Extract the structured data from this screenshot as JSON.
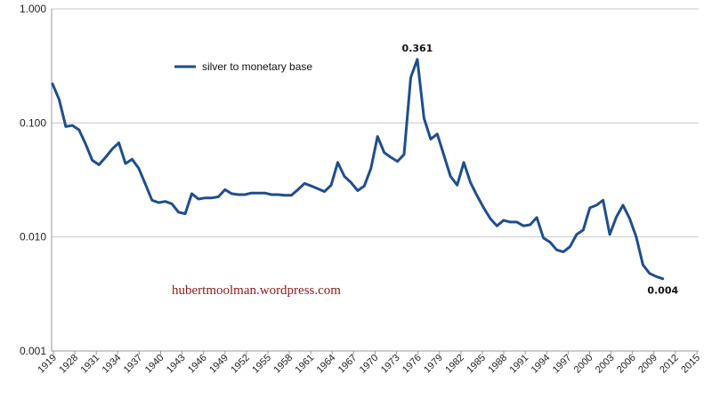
{
  "chart_data": {
    "type": "line",
    "yscale": "log",
    "ylim": [
      0.001,
      1.0
    ],
    "yticks": [
      {
        "value": 1.0,
        "label": "1.000"
      },
      {
        "value": 0.1,
        "label": "0.100"
      },
      {
        "value": 0.01,
        "label": "0.010"
      },
      {
        "value": 0.001,
        "label": "0.001"
      }
    ],
    "xlim": [
      1919,
      2016
    ],
    "xtick_labels": [
      "1919",
      "1928",
      "1931",
      "1934",
      "1937",
      "1940",
      "1943",
      "1946",
      "1949",
      "1952",
      "1955",
      "1958",
      "1961",
      "1964",
      "1967",
      "1970",
      "1973",
      "1976",
      "1979",
      "1982",
      "1985",
      "1988",
      "1991",
      "1994",
      "1997",
      "2000",
      "2003",
      "2006",
      "2009",
      "2012",
      "2015"
    ],
    "grid": "horizontal",
    "legend_position": "top-left",
    "series": [
      {
        "name": "silver to monetary base",
        "color": "#1f4e8c",
        "points": [
          [
            1919,
            0.22
          ],
          [
            1920,
            0.16
          ],
          [
            1921,
            0.093
          ],
          [
            1922,
            0.095
          ],
          [
            1923,
            0.087
          ],
          [
            1924,
            0.065
          ],
          [
            1925,
            0.047
          ],
          [
            1926,
            0.043
          ],
          [
            1927,
            0.05
          ],
          [
            1928,
            0.059
          ],
          [
            1929,
            0.067
          ],
          [
            1930,
            0.044
          ],
          [
            1931,
            0.048
          ],
          [
            1932,
            0.04
          ],
          [
            1933,
            0.029
          ],
          [
            1934,
            0.021
          ],
          [
            1935,
            0.02
          ],
          [
            1936,
            0.0205
          ],
          [
            1937,
            0.0195
          ],
          [
            1938,
            0.0165
          ],
          [
            1939,
            0.016
          ],
          [
            1940,
            0.024
          ],
          [
            1941,
            0.0215
          ],
          [
            1942,
            0.022
          ],
          [
            1943,
            0.022
          ],
          [
            1944,
            0.0225
          ],
          [
            1945,
            0.026
          ],
          [
            1946,
            0.024
          ],
          [
            1947,
            0.0235
          ],
          [
            1948,
            0.0235
          ],
          [
            1949,
            0.0243
          ],
          [
            1950,
            0.0243
          ],
          [
            1951,
            0.0243
          ],
          [
            1952,
            0.0235
          ],
          [
            1953,
            0.0235
          ],
          [
            1954,
            0.0232
          ],
          [
            1955,
            0.0232
          ],
          [
            1956,
            0.026
          ],
          [
            1957,
            0.0295
          ],
          [
            1958,
            0.028
          ],
          [
            1959,
            0.0265
          ],
          [
            1960,
            0.025
          ],
          [
            1961,
            0.0285
          ],
          [
            1962,
            0.045
          ],
          [
            1963,
            0.034
          ],
          [
            1964,
            0.03
          ],
          [
            1965,
            0.0255
          ],
          [
            1966,
            0.028
          ],
          [
            1967,
            0.04
          ],
          [
            1968,
            0.076
          ],
          [
            1969,
            0.055
          ],
          [
            1970,
            0.05
          ],
          [
            1971,
            0.046
          ],
          [
            1972,
            0.053
          ],
          [
            1973,
            0.25
          ],
          [
            1974,
            0.361
          ],
          [
            1975,
            0.11
          ],
          [
            1976,
            0.072
          ],
          [
            1977,
            0.08
          ],
          [
            1978,
            0.052
          ],
          [
            1979,
            0.034
          ],
          [
            1980,
            0.0285
          ],
          [
            1981,
            0.045
          ],
          [
            1982,
            0.03
          ],
          [
            1983,
            0.023
          ],
          [
            1984,
            0.018
          ],
          [
            1985,
            0.0145
          ],
          [
            1986,
            0.0125
          ],
          [
            1987,
            0.014
          ],
          [
            1988,
            0.0135
          ],
          [
            1989,
            0.0135
          ],
          [
            1990,
            0.0125
          ],
          [
            1991,
            0.0128
          ],
          [
            1992,
            0.0148
          ],
          [
            1993,
            0.0098
          ],
          [
            1994,
            0.009
          ],
          [
            1995,
            0.0077
          ],
          [
            1996,
            0.0074
          ],
          [
            1997,
            0.0082
          ],
          [
            1998,
            0.0105
          ],
          [
            1999,
            0.0115
          ],
          [
            2000,
            0.018
          ],
          [
            2001,
            0.019
          ],
          [
            2002,
            0.021
          ],
          [
            2003,
            0.0105
          ],
          [
            2004,
            0.015
          ],
          [
            2005,
            0.019
          ],
          [
            2006,
            0.0145
          ],
          [
            2007,
            0.01
          ],
          [
            2008,
            0.0057
          ],
          [
            2009,
            0.0048
          ],
          [
            2010,
            0.0045
          ],
          [
            2011,
            0.0043
          ]
        ]
      }
    ],
    "annotations": [
      {
        "text": "0.361",
        "x": 1974,
        "y": 0.361,
        "anchor": "above"
      },
      {
        "text": "0.004",
        "x": 2011,
        "y": 0.0043,
        "anchor": "below"
      }
    ]
  },
  "watermark": "hubertmoolman.wordpress.com"
}
